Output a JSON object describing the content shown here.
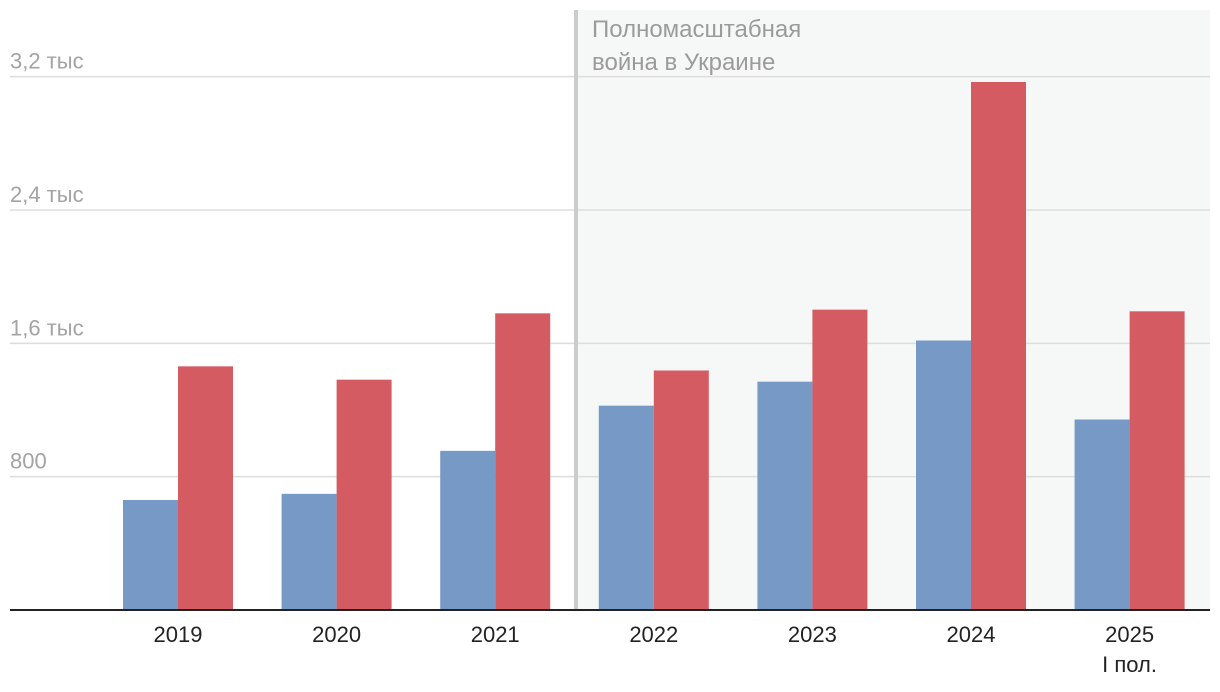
{
  "chart_data": {
    "type": "bar",
    "categories": [
      [
        "2019"
      ],
      [
        "2020"
      ],
      [
        "2021"
      ],
      [
        "2022"
      ],
      [
        "2023"
      ],
      [
        "2024"
      ],
      [
        "2025",
        "I пол."
      ]
    ],
    "series": [
      {
        "color": "#7799c5",
        "values": [
          660,
          697,
          955,
          1226,
          1370,
          1617,
          1143
        ]
      },
      {
        "color": "#d45b62",
        "values": [
          1462,
          1382,
          1780,
          1437,
          1802,
          3168,
          1792
        ]
      }
    ],
    "ylim": [
      0,
      3600
    ],
    "yticks": [
      {
        "value": 800,
        "label": "800"
      },
      {
        "value": 1600,
        "label": "1,6 тыс"
      },
      {
        "value": 2400,
        "label": "2,4 тыс"
      },
      {
        "value": 3200,
        "label": "3,2 тыс"
      }
    ],
    "grid": true,
    "annotation": {
      "lines": [
        "Полномасштабная",
        "война в Украине"
      ],
      "after_category": "2021",
      "shade_color": "#f6f7f7",
      "line_color": "#cccccc"
    }
  }
}
